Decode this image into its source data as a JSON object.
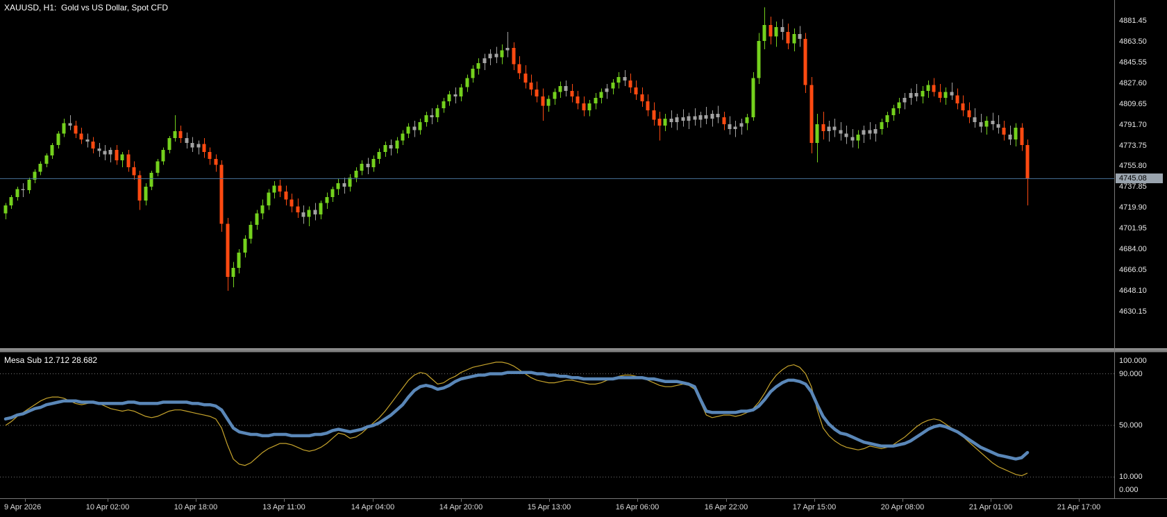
{
  "window": {
    "title": "XAUUSD, H1:  Gold vs US Dollar, Spot CFD"
  },
  "main_chart": {
    "price_axis_labels": [
      "4881.45",
      "4863.50",
      "4845.55",
      "4827.60",
      "4809.65",
      "4791.70",
      "4773.75",
      "4755.80",
      "4737.85",
      "4719.90",
      "4701.95",
      "4684.00",
      "4666.05",
      "4648.10",
      "4630.15"
    ],
    "current_price": "4745.08",
    "colors": {
      "background": "#000000",
      "bull": "#74d11d",
      "bear": "#ff4a11",
      "neutral": "#a3a3a3",
      "current_price_line": "#49759c",
      "current_price_badge_bg": "#9aa4ae",
      "current_price_badge_text": "#000000",
      "text": "#ffffff"
    }
  },
  "indicator": {
    "label": "Mesa Sub 12.712 28.682",
    "name": "Mesa Sub",
    "current_values": [
      12.712,
      28.682
    ],
    "axis_labels": [
      "100.000",
      "90.000",
      "50.000",
      "10.000",
      "0.000"
    ],
    "level_lines": [
      90,
      50,
      10
    ],
    "colors": {
      "main": "#5a87b8",
      "signal": "#c8a52c",
      "level": "#787878"
    }
  },
  "time_axis": {
    "labels": [
      "9 Apr 2026",
      "10 Apr 02:00",
      "10 Apr 18:00",
      "13 Apr 11:00",
      "14 Apr 04:00",
      "14 Apr 20:00",
      "15 Apr 13:00",
      "16 Apr 06:00",
      "16 Apr 22:00",
      "17 Apr 15:00",
      "20 Apr 08:00",
      "21 Apr 01:00",
      "21 Apr 17:00"
    ]
  },
  "chart_data": {
    "type": "candlestick",
    "title": "XAUUSD, H1: Gold vs US Dollar, Spot CFD",
    "symbol": "XAUUSD",
    "timeframe": "H1",
    "price_range": [
      4630.15,
      4881.45
    ],
    "price_ticks": [
      4881.45,
      4863.5,
      4845.55,
      4827.6,
      4809.65,
      4791.7,
      4773.75,
      4755.8,
      4737.85,
      4719.9,
      4701.95,
      4684.0,
      4666.05,
      4648.1,
      4630.15
    ],
    "current_price": 4745.08,
    "x_labels": [
      "9 Apr 2026",
      "10 Apr 02:00",
      "10 Apr 18:00",
      "13 Apr 11:00",
      "14 Apr 04:00",
      "14 Apr 20:00",
      "15 Apr 13:00",
      "16 Apr 06:00",
      "16 Apr 22:00",
      "17 Apr 15:00",
      "20 Apr 08:00",
      "21 Apr 01:00",
      "21 Apr 17:00"
    ],
    "candles": [
      [
        4715,
        4724,
        4710,
        4722
      ],
      [
        4722,
        4731,
        4719,
        4729
      ],
      [
        4729,
        4738,
        4726,
        4736
      ],
      [
        4736,
        4741,
        4729,
        4735
      ],
      [
        4735,
        4746,
        4732,
        4744
      ],
      [
        4744,
        4753,
        4741,
        4751
      ],
      [
        4751,
        4760,
        4748,
        4758
      ],
      [
        4758,
        4767,
        4755,
        4765
      ],
      [
        4765,
        4776,
        4762,
        4774
      ],
      [
        4774,
        4786,
        4771,
        4784
      ],
      [
        4784,
        4797,
        4781,
        4793
      ],
      [
        4793,
        4800,
        4787,
        4791
      ],
      [
        4791,
        4795,
        4780,
        4784
      ],
      [
        4784,
        4789,
        4775,
        4779
      ],
      [
        4779,
        4784,
        4772,
        4777
      ],
      [
        4777,
        4781,
        4767,
        4771
      ],
      [
        4771,
        4776,
        4764,
        4769
      ],
      [
        4769,
        4774,
        4761,
        4766
      ],
      [
        4766,
        4772,
        4759,
        4770
      ],
      [
        4770,
        4774,
        4757,
        4761
      ],
      [
        4761,
        4768,
        4755,
        4766
      ],
      [
        4766,
        4770,
        4751,
        4755
      ],
      [
        4755,
        4760,
        4744,
        4748
      ],
      [
        4748,
        4752,
        4718,
        4726
      ],
      [
        4726,
        4741,
        4722,
        4738
      ],
      [
        4738,
        4752,
        4735,
        4750
      ],
      [
        4750,
        4762,
        4747,
        4760
      ],
      [
        4760,
        4772,
        4757,
        4770
      ],
      [
        4770,
        4782,
        4767,
        4780
      ],
      [
        4780,
        4800,
        4777,
        4786
      ],
      [
        4786,
        4791,
        4776,
        4780
      ],
      [
        4780,
        4785,
        4771,
        4776
      ],
      [
        4776,
        4781,
        4768,
        4772
      ],
      [
        4772,
        4778,
        4766,
        4775
      ],
      [
        4775,
        4780,
        4763,
        4768
      ],
      [
        4768,
        4772,
        4757,
        4762
      ],
      [
        4762,
        4766,
        4751,
        4757
      ],
      [
        4757,
        4761,
        4699,
        4706
      ],
      [
        4706,
        4711,
        4648,
        4660
      ],
      [
        4660,
        4673,
        4651,
        4668
      ],
      [
        4668,
        4684,
        4663,
        4681
      ],
      [
        4681,
        4696,
        4677,
        4693
      ],
      [
        4693,
        4708,
        4689,
        4705
      ],
      [
        4705,
        4718,
        4701,
        4715
      ],
      [
        4715,
        4727,
        4710,
        4722
      ],
      [
        4722,
        4736,
        4718,
        4733
      ],
      [
        4733,
        4743,
        4728,
        4739
      ],
      [
        4739,
        4744,
        4729,
        4734
      ],
      [
        4734,
        4739,
        4722,
        4727
      ],
      [
        4727,
        4732,
        4716,
        4721
      ],
      [
        4721,
        4728,
        4711,
        4716
      ],
      [
        4716,
        4722,
        4706,
        4712
      ],
      [
        4712,
        4721,
        4704,
        4718
      ],
      [
        4718,
        4724,
        4709,
        4714
      ],
      [
        4714,
        4726,
        4710,
        4724
      ],
      [
        4724,
        4733,
        4719,
        4729
      ],
      [
        4729,
        4738,
        4725,
        4736
      ],
      [
        4736,
        4745,
        4731,
        4741
      ],
      [
        4741,
        4746,
        4732,
        4738
      ],
      [
        4738,
        4749,
        4734,
        4746
      ],
      [
        4746,
        4755,
        4742,
        4752
      ],
      [
        4752,
        4761,
        4748,
        4758
      ],
      [
        4758,
        4763,
        4749,
        4755
      ],
      [
        4755,
        4765,
        4751,
        4762
      ],
      [
        4762,
        4771,
        4758,
        4768
      ],
      [
        4768,
        4777,
        4764,
        4774
      ],
      [
        4774,
        4779,
        4765,
        4771
      ],
      [
        4771,
        4781,
        4767,
        4778
      ],
      [
        4778,
        4787,
        4774,
        4784
      ],
      [
        4784,
        4793,
        4780,
        4790
      ],
      [
        4790,
        4795,
        4781,
        4787
      ],
      [
        4787,
        4797,
        4783,
        4794
      ],
      [
        4794,
        4803,
        4790,
        4800
      ],
      [
        4800,
        4806,
        4792,
        4798
      ],
      [
        4798,
        4809,
        4794,
        4806
      ],
      [
        4806,
        4815,
        4802,
        4812
      ],
      [
        4812,
        4821,
        4808,
        4818
      ],
      [
        4818,
        4824,
        4810,
        4816
      ],
      [
        4816,
        4827,
        4812,
        4824
      ],
      [
        4824,
        4835,
        4820,
        4832
      ],
      [
        4832,
        4843,
        4828,
        4840
      ],
      [
        4840,
        4849,
        4835,
        4845
      ],
      [
        4845,
        4853,
        4839,
        4849
      ],
      [
        4849,
        4857,
        4843,
        4853
      ],
      [
        4853,
        4859,
        4845,
        4850
      ],
      [
        4850,
        4861,
        4844,
        4856
      ],
      [
        4856,
        4872,
        4850,
        4858
      ],
      [
        4858,
        4863,
        4839,
        4844
      ],
      [
        4844,
        4851,
        4831,
        4836
      ],
      [
        4836,
        4843,
        4823,
        4828
      ],
      [
        4828,
        4835,
        4817,
        4822
      ],
      [
        4822,
        4829,
        4811,
        4816
      ],
      [
        4816,
        4823,
        4795,
        4808
      ],
      [
        4808,
        4817,
        4803,
        4814
      ],
      [
        4814,
        4823,
        4809,
        4820
      ],
      [
        4820,
        4829,
        4815,
        4825
      ],
      [
        4825,
        4830,
        4816,
        4821
      ],
      [
        4821,
        4827,
        4811,
        4816
      ],
      [
        4816,
        4821,
        4805,
        4810
      ],
      [
        4810,
        4816,
        4799,
        4804
      ],
      [
        4804,
        4813,
        4799,
        4810
      ],
      [
        4810,
        4819,
        4805,
        4815
      ],
      [
        4815,
        4823,
        4810,
        4820
      ],
      [
        4820,
        4827,
        4814,
        4823
      ],
      [
        4823,
        4831,
        4818,
        4828
      ],
      [
        4828,
        4837,
        4823,
        4833
      ],
      [
        4833,
        4839,
        4825,
        4830
      ],
      [
        4830,
        4836,
        4819,
        4824
      ],
      [
        4824,
        4830,
        4813,
        4818
      ],
      [
        4818,
        4824,
        4807,
        4812
      ],
      [
        4812,
        4818,
        4799,
        4804
      ],
      [
        4804,
        4811,
        4791,
        4796
      ],
      [
        4797,
        4803,
        4778,
        4791
      ],
      [
        4791,
        4801,
        4786,
        4797
      ],
      [
        4797,
        4804,
        4789,
        4794
      ],
      [
        4794,
        4801,
        4787,
        4798
      ],
      [
        4798,
        4805,
        4790,
        4795
      ],
      [
        4795,
        4802,
        4788,
        4799
      ],
      [
        4799,
        4806,
        4791,
        4796
      ],
      [
        4796,
        4803,
        4789,
        4800
      ],
      [
        4800,
        4807,
        4792,
        4797
      ],
      [
        4797,
        4804,
        4790,
        4801
      ],
      [
        4801,
        4808,
        4793,
        4798
      ],
      [
        4798,
        4803,
        4787,
        4792
      ],
      [
        4792,
        4799,
        4783,
        4788
      ],
      [
        4788,
        4795,
        4781,
        4790
      ],
      [
        4790,
        4797,
        4783,
        4793
      ],
      [
        4793,
        4801,
        4787,
        4798
      ],
      [
        4798,
        4837,
        4795,
        4832
      ],
      [
        4832,
        4871,
        4827,
        4864
      ],
      [
        4864,
        4893,
        4857,
        4878
      ],
      [
        4878,
        4885,
        4861,
        4868
      ],
      [
        4868,
        4881,
        4859,
        4876
      ],
      [
        4876,
        4883,
        4865,
        4872
      ],
      [
        4872,
        4879,
        4857,
        4862
      ],
      [
        4862,
        4875,
        4855,
        4870
      ],
      [
        4870,
        4877,
        4859,
        4866
      ],
      [
        4866,
        4871,
        4819,
        4826
      ],
      [
        4826,
        4833,
        4767,
        4776
      ],
      [
        4776,
        4801,
        4759,
        4792
      ],
      [
        4792,
        4803,
        4779,
        4786
      ],
      [
        4786,
        4795,
        4777,
        4790
      ],
      [
        4790,
        4797,
        4781,
        4787
      ],
      [
        4787,
        4794,
        4778,
        4784
      ],
      [
        4784,
        4791,
        4775,
        4781
      ],
      [
        4781,
        4788,
        4772,
        4778
      ],
      [
        4778,
        4787,
        4771,
        4783
      ],
      [
        4783,
        4791,
        4776,
        4787
      ],
      [
        4787,
        4794,
        4779,
        4784
      ],
      [
        4784,
        4792,
        4777,
        4788
      ],
      [
        4788,
        4797,
        4783,
        4794
      ],
      [
        4794,
        4803,
        4789,
        4800
      ],
      [
        4800,
        4809,
        4795,
        4806
      ],
      [
        4806,
        4815,
        4801,
        4811
      ],
      [
        4811,
        4819,
        4805,
        4815
      ],
      [
        4815,
        4823,
        4809,
        4819
      ],
      [
        4819,
        4827,
        4812,
        4816
      ],
      [
        4816,
        4825,
        4810,
        4821
      ],
      [
        4821,
        4830,
        4815,
        4826
      ],
      [
        4826,
        4832,
        4816,
        4820
      ],
      [
        4820,
        4827,
        4811,
        4815
      ],
      [
        4815,
        4824,
        4809,
        4820
      ],
      [
        4820,
        4828,
        4813,
        4817
      ],
      [
        4817,
        4823,
        4805,
        4810
      ],
      [
        4810,
        4817,
        4799,
        4804
      ],
      [
        4804,
        4811,
        4793,
        4798
      ],
      [
        4798,
        4806,
        4789,
        4794
      ],
      [
        4794,
        4801,
        4785,
        4790
      ],
      [
        4790,
        4799,
        4783,
        4795
      ],
      [
        4795,
        4802,
        4787,
        4792
      ],
      [
        4792,
        4800,
        4784,
        4789
      ],
      [
        4789,
        4795,
        4778,
        4783
      ],
      [
        4783,
        4791,
        4774,
        4779
      ],
      [
        4779,
        4793,
        4773,
        4789
      ],
      [
        4789,
        4793,
        4769,
        4774
      ],
      [
        4774,
        4779,
        4722,
        4745
      ]
    ],
    "indicator": {
      "name": "Mesa Sub",
      "range": [
        0,
        100
      ],
      "levels": [
        90,
        50,
        10
      ],
      "current_values": [
        12.712,
        28.682
      ],
      "main": [
        55,
        56,
        58,
        59,
        61,
        63,
        64,
        66,
        67,
        68,
        69,
        69,
        69,
        68,
        68,
        68,
        67,
        67,
        67,
        67,
        67,
        68,
        68,
        67,
        67,
        67,
        67,
        68,
        68,
        68,
        68,
        68,
        67,
        67,
        66,
        66,
        65,
        62,
        55,
        48,
        45,
        44,
        43,
        43,
        42,
        42,
        43,
        43,
        43,
        42,
        42,
        42,
        42,
        43,
        43,
        44,
        46,
        47,
        46,
        45,
        46,
        47,
        49,
        50,
        52,
        55,
        58,
        62,
        66,
        72,
        77,
        80,
        81,
        80,
        78,
        79,
        81,
        84,
        86,
        87,
        88,
        89,
        89,
        90,
        90,
        90,
        91,
        91,
        91,
        91,
        91,
        90,
        90,
        89,
        89,
        88,
        88,
        87,
        87,
        86,
        86,
        86,
        86,
        86,
        86,
        87,
        87,
        87,
        87,
        87,
        86,
        86,
        85,
        84,
        84,
        84,
        83,
        82,
        80,
        70,
        61,
        60,
        60,
        60,
        60,
        60,
        61,
        61,
        62,
        65,
        70,
        76,
        80,
        83,
        85,
        85,
        84,
        82,
        76,
        66,
        57,
        51,
        47,
        44,
        43,
        41,
        39,
        37,
        36,
        35,
        34,
        34,
        34,
        35,
        36,
        38,
        41,
        44,
        47,
        49,
        50,
        49,
        47,
        45,
        42,
        39,
        36,
        33,
        31,
        29,
        27,
        26,
        25,
        24,
        25,
        29
      ],
      "signal": [
        50,
        53,
        57,
        60,
        63,
        66,
        69,
        71,
        72,
        72,
        71,
        69,
        67,
        66,
        67,
        68,
        67,
        65,
        63,
        62,
        61,
        62,
        61,
        59,
        57,
        56,
        57,
        59,
        61,
        62,
        62,
        61,
        60,
        59,
        58,
        57,
        55,
        48,
        35,
        24,
        20,
        19,
        21,
        25,
        29,
        32,
        34,
        36,
        36,
        35,
        33,
        31,
        30,
        31,
        33,
        36,
        40,
        44,
        43,
        40,
        41,
        44,
        48,
        52,
        56,
        61,
        67,
        73,
        79,
        85,
        89,
        91,
        90,
        86,
        82,
        83,
        86,
        88,
        91,
        93,
        95,
        96,
        97,
        98,
        99,
        99,
        98,
        96,
        93,
        90,
        87,
        85,
        84,
        83,
        83,
        84,
        85,
        85,
        84,
        83,
        82,
        82,
        83,
        85,
        86,
        88,
        89,
        89,
        88,
        87,
        85,
        83,
        81,
        80,
        80,
        81,
        82,
        81,
        78,
        68,
        58,
        56,
        57,
        58,
        58,
        57,
        58,
        60,
        63,
        68,
        75,
        83,
        89,
        93,
        96,
        97,
        95,
        90,
        80,
        62,
        48,
        42,
        38,
        35,
        33,
        32,
        31,
        32,
        34,
        33,
        32,
        33,
        35,
        38,
        41,
        45,
        49,
        52,
        54,
        55,
        54,
        51,
        48,
        45,
        41,
        37,
        33,
        29,
        25,
        21,
        18,
        16,
        14,
        12,
        11,
        13
      ]
    }
  }
}
